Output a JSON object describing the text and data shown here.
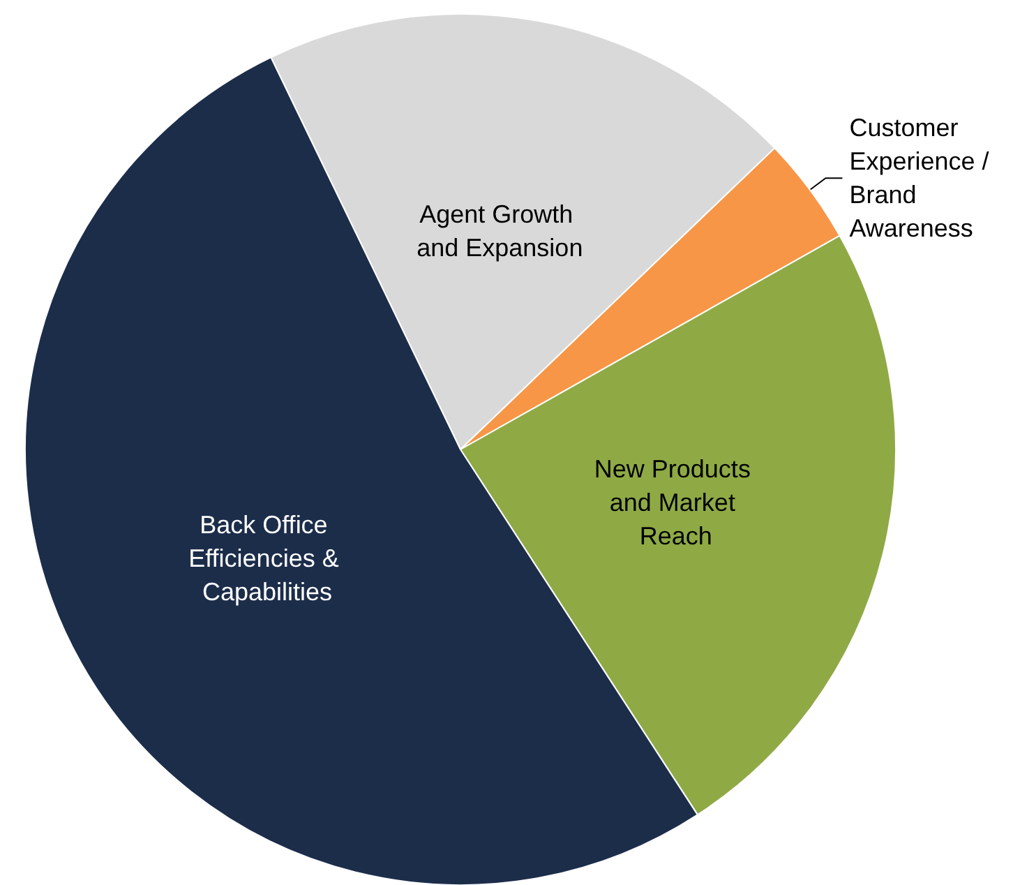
{
  "chart_data": {
    "type": "pie",
    "categories": [
      "Agent Growth and Expansion",
      "Customer Experience / Brand Awareness",
      "New Products and Market Reach",
      "Back Office Efficiencies & Capabilities"
    ],
    "values": [
      20,
      4,
      24,
      52
    ],
    "colors": [
      "#d9d9d9",
      "#f79646",
      "#8faa45",
      "#1c2d4a"
    ]
  }
}
